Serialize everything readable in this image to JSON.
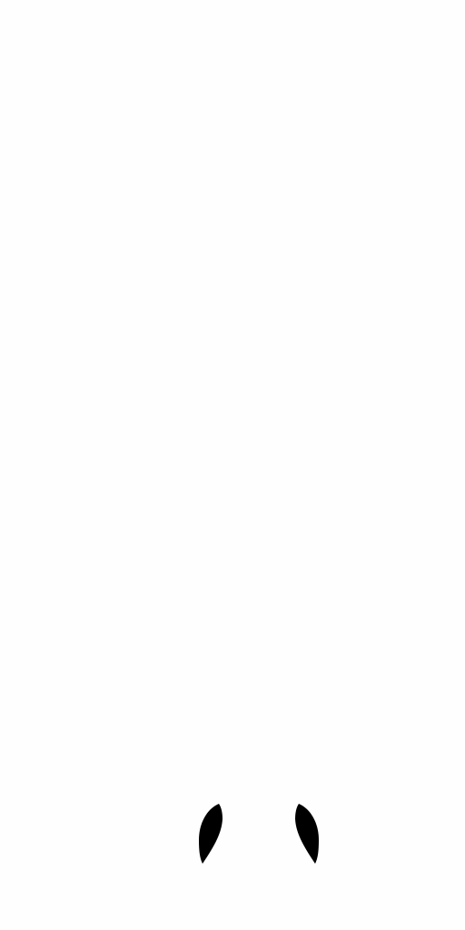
{
  "colors": {
    "background": "#fefefe",
    "shape": "#000000"
  },
  "shapes": [
    {
      "name": "left-crescent-shape"
    },
    {
      "name": "right-crescent-shape"
    }
  ]
}
